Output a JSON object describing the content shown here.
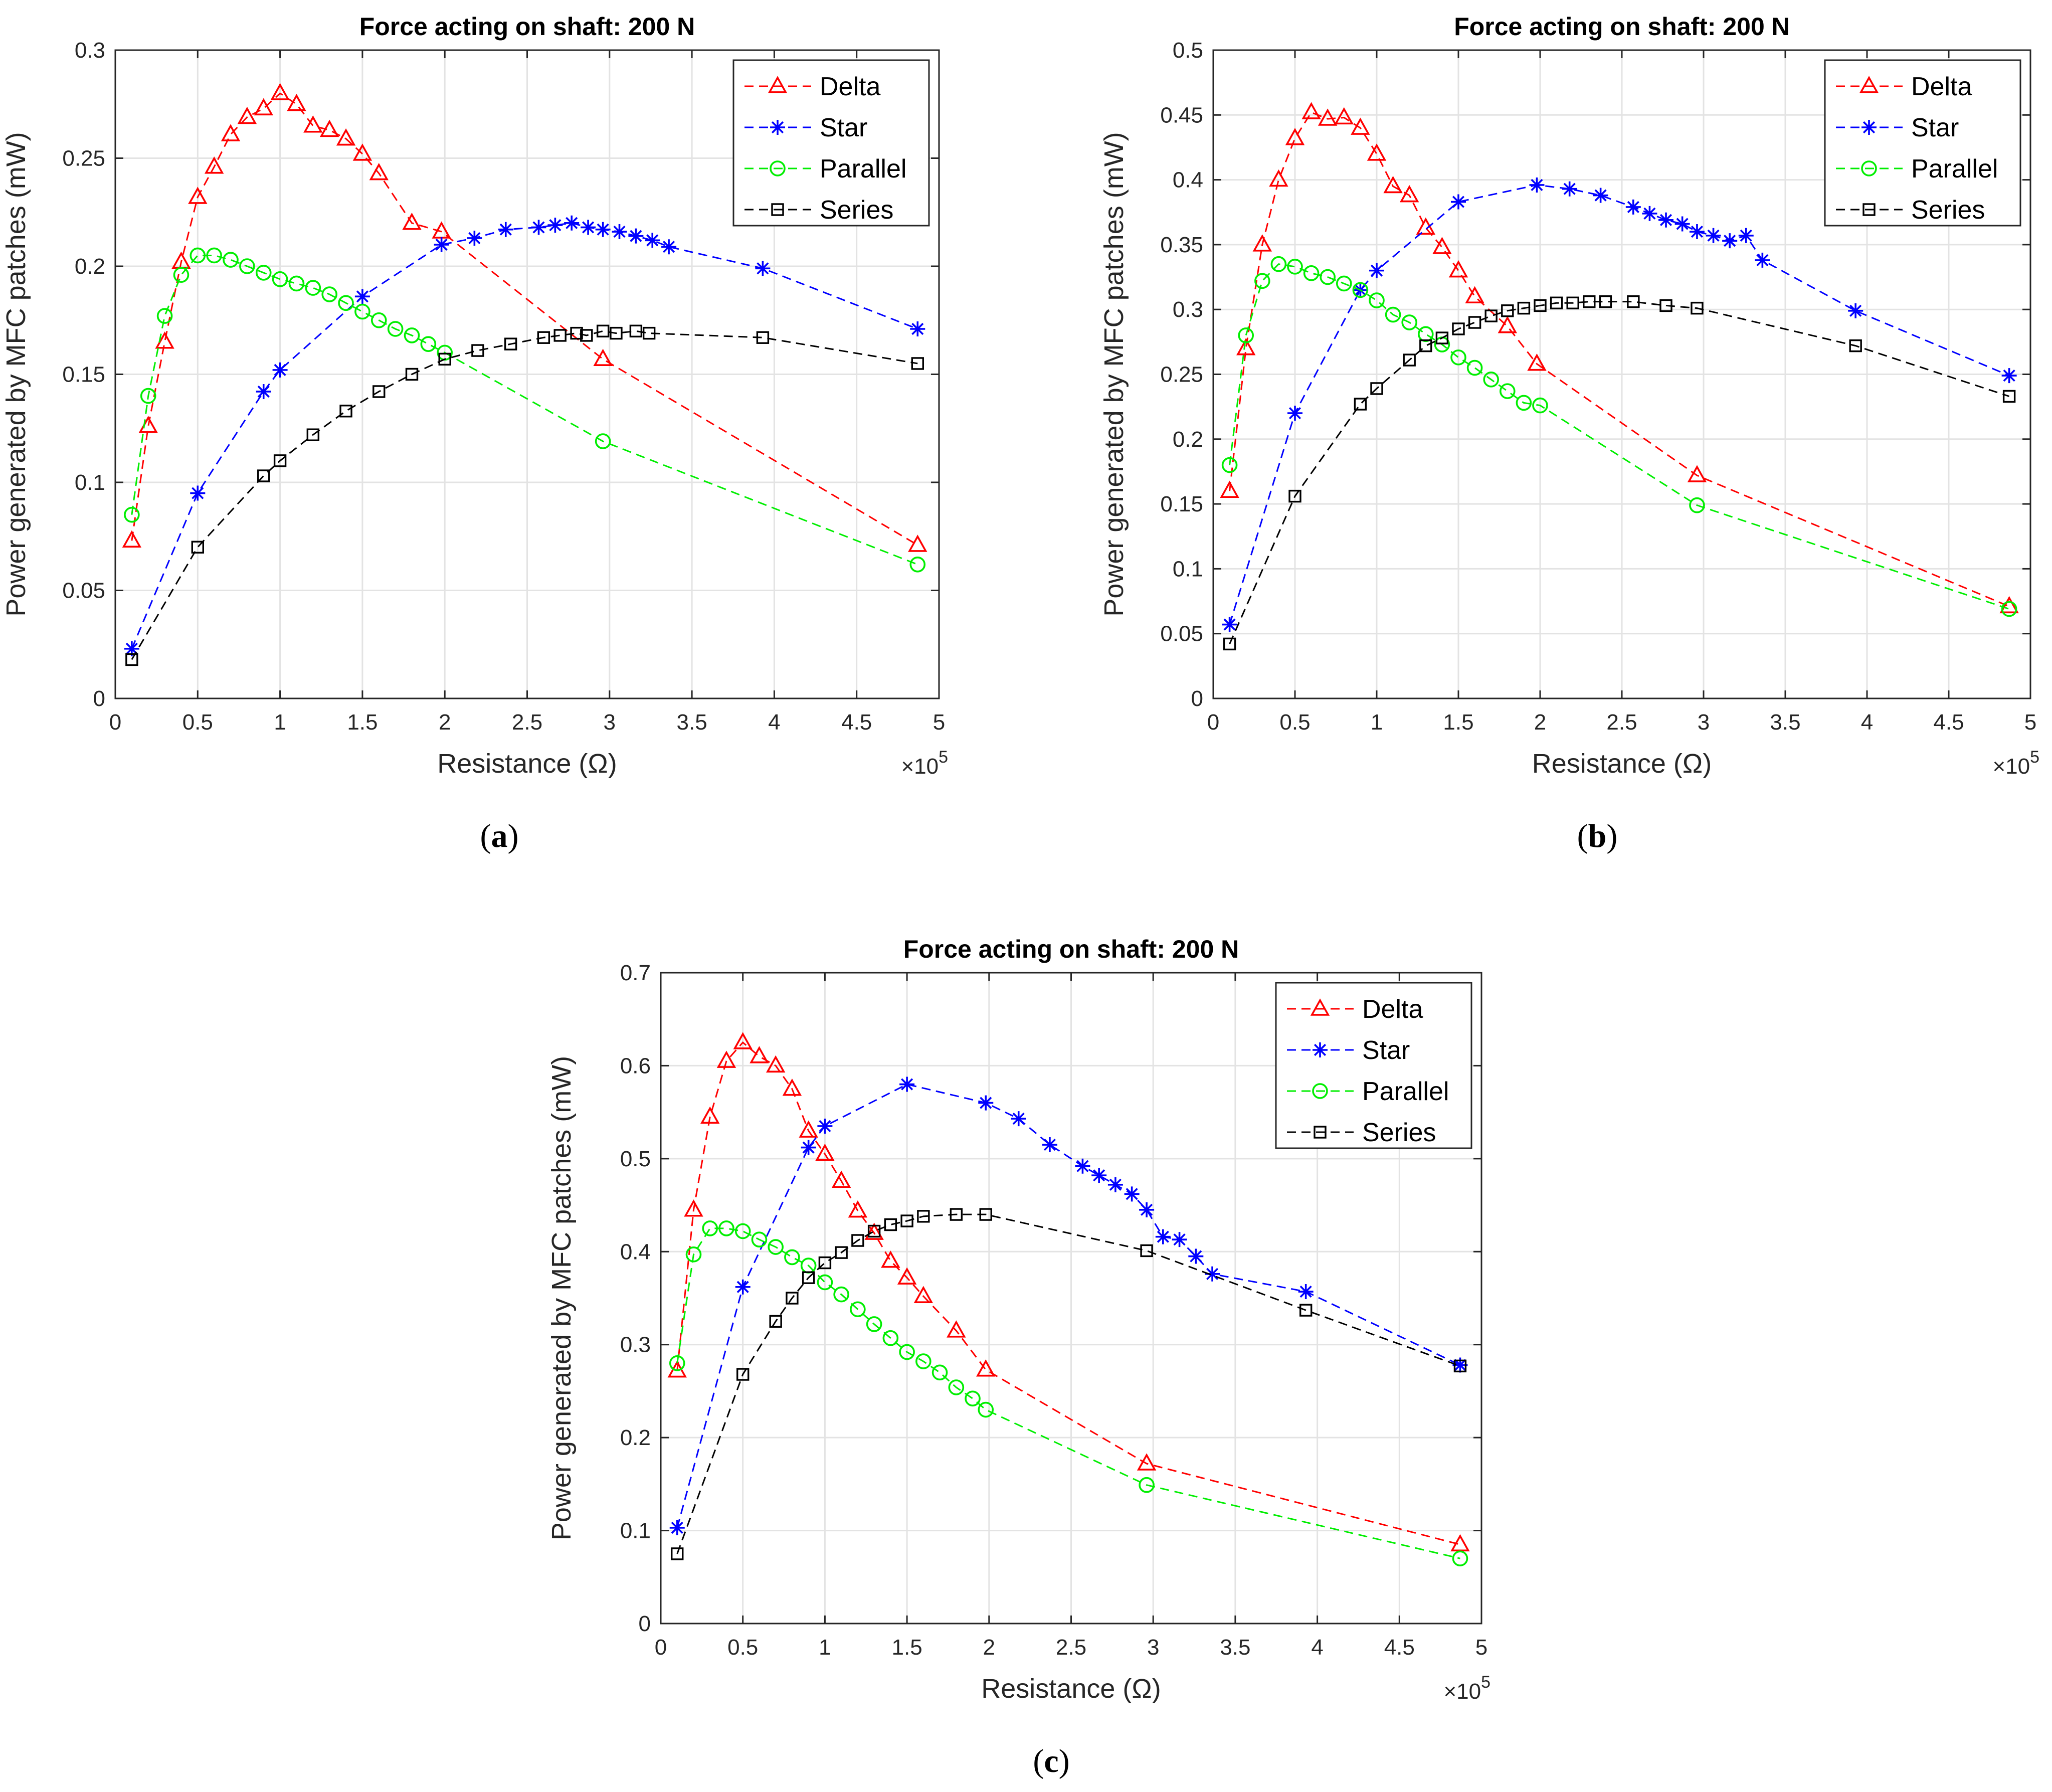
{
  "figure": {
    "captions": [
      "a",
      "b",
      "c"
    ]
  },
  "colors": {
    "delta": "#ff0000",
    "star": "#0000ff",
    "parallel": "#00ee00",
    "series": "#000000",
    "grid": "#e3e3e3",
    "axis": "#262626"
  },
  "chart_data": [
    {
      "type": "line",
      "panel": "a",
      "title": "Force acting on shaft: 200 N",
      "xlabel": "Resistance (Ω)",
      "ylabel": "Power generated by MFC patches (mW)",
      "x_multiplier_label": "×10",
      "x_multiplier_exp": "5",
      "xlim": [
        0,
        5
      ],
      "ylim": [
        0,
        0.3
      ],
      "xticks": [
        0,
        0.5,
        1,
        1.5,
        2,
        2.5,
        3,
        3.5,
        4,
        4.5,
        5
      ],
      "xtick_labels": [
        "0",
        "0.5",
        "1",
        "1.5",
        "2",
        "2.5",
        "3",
        "3.5",
        "4",
        "4.5",
        "5"
      ],
      "yticks": [
        0,
        0.05,
        0.1,
        0.15,
        0.2,
        0.25,
        0.3
      ],
      "ytick_labels": [
        "0",
        "0.05",
        "0.1",
        "0.15",
        "0.2",
        "0.25",
        "0.3"
      ],
      "grid": true,
      "legend_position": "top-right",
      "series": [
        {
          "name": "Delta",
          "marker": "triangle",
          "color_key": "delta",
          "x": [
            0.1,
            0.2,
            0.3,
            0.4,
            0.5,
            0.6,
            0.7,
            0.8,
            0.9,
            1.0,
            1.1,
            1.2,
            1.3,
            1.4,
            1.5,
            1.6,
            1.8,
            1.98,
            2.96,
            4.87
          ],
          "y": [
            0.073,
            0.126,
            0.165,
            0.202,
            0.232,
            0.246,
            0.261,
            0.269,
            0.273,
            0.28,
            0.275,
            0.265,
            0.263,
            0.259,
            0.252,
            0.243,
            0.22,
            0.216,
            0.157,
            0.071
          ]
        },
        {
          "name": "Star",
          "marker": "asterisk",
          "color_key": "star",
          "x": [
            0.1,
            0.5,
            0.9,
            1.0,
            1.5,
            1.98,
            2.18,
            2.37,
            2.57,
            2.67,
            2.77,
            2.87,
            2.96,
            3.06,
            3.16,
            3.26,
            3.36,
            3.93,
            4.87
          ],
          "y": [
            0.023,
            0.095,
            0.142,
            0.152,
            0.186,
            0.21,
            0.213,
            0.217,
            0.218,
            0.219,
            0.22,
            0.218,
            0.217,
            0.216,
            0.214,
            0.212,
            0.209,
            0.199,
            0.171
          ]
        },
        {
          "name": "Parallel",
          "marker": "circle",
          "color_key": "parallel",
          "x": [
            0.1,
            0.2,
            0.3,
            0.4,
            0.5,
            0.6,
            0.7,
            0.8,
            0.9,
            1.0,
            1.1,
            1.2,
            1.3,
            1.4,
            1.5,
            1.6,
            1.7,
            1.8,
            1.9,
            2.0,
            2.96,
            4.87
          ],
          "y": [
            0.085,
            0.14,
            0.177,
            0.196,
            0.205,
            0.205,
            0.203,
            0.2,
            0.197,
            0.194,
            0.192,
            0.19,
            0.187,
            0.183,
            0.179,
            0.175,
            0.171,
            0.168,
            0.164,
            0.16,
            0.119,
            0.062
          ]
        },
        {
          "name": "Series",
          "marker": "square",
          "color_key": "series",
          "x": [
            0.1,
            0.5,
            0.9,
            1.0,
            1.2,
            1.4,
            1.6,
            1.8,
            2.0,
            2.2,
            2.4,
            2.6,
            2.7,
            2.8,
            2.86,
            2.96,
            3.04,
            3.16,
            3.24,
            3.93,
            4.87
          ],
          "y": [
            0.018,
            0.07,
            0.103,
            0.11,
            0.122,
            0.133,
            0.142,
            0.15,
            0.157,
            0.161,
            0.164,
            0.167,
            0.168,
            0.169,
            0.168,
            0.17,
            0.169,
            0.17,
            0.169,
            0.167,
            0.155
          ]
        }
      ]
    },
    {
      "type": "line",
      "panel": "b",
      "title": "Force acting on shaft: 200 N",
      "xlabel": "Resistance (Ω)",
      "ylabel": "Power generated by MFC patches (mW)",
      "x_multiplier_label": "×10",
      "x_multiplier_exp": "5",
      "xlim": [
        0,
        5
      ],
      "ylim": [
        0,
        0.5
      ],
      "xticks": [
        0,
        0.5,
        1,
        1.5,
        2,
        2.5,
        3,
        3.5,
        4,
        4.5,
        5
      ],
      "xtick_labels": [
        "0",
        "0.5",
        "1",
        "1.5",
        "2",
        "2.5",
        "3",
        "3.5",
        "4",
        "4.5",
        "5"
      ],
      "yticks": [
        0,
        0.05,
        0.1,
        0.15,
        0.2,
        0.25,
        0.3,
        0.35,
        0.4,
        0.45,
        0.5
      ],
      "ytick_labels": [
        "0",
        "0.05",
        "0.1",
        "0.15",
        "0.2",
        "0.25",
        "0.3",
        "0.35",
        "0.4",
        "0.45",
        "0.5"
      ],
      "grid": true,
      "legend_position": "top-right",
      "series": [
        {
          "name": "Delta",
          "marker": "triangle",
          "color_key": "delta",
          "x": [
            0.1,
            0.2,
            0.3,
            0.4,
            0.5,
            0.6,
            0.7,
            0.8,
            0.9,
            1.0,
            1.1,
            1.2,
            1.3,
            1.4,
            1.5,
            1.6,
            1.8,
            1.98,
            2.96,
            4.87
          ],
          "y": [
            0.16,
            0.27,
            0.35,
            0.4,
            0.432,
            0.452,
            0.447,
            0.448,
            0.44,
            0.42,
            0.395,
            0.388,
            0.363,
            0.348,
            0.33,
            0.31,
            0.287,
            0.258,
            0.172,
            0.071
          ]
        },
        {
          "name": "Star",
          "marker": "asterisk",
          "color_key": "star",
          "x": [
            0.1,
            0.5,
            0.9,
            1.0,
            1.5,
            1.98,
            2.18,
            2.37,
            2.57,
            2.67,
            2.77,
            2.87,
            2.96,
            3.06,
            3.16,
            3.26,
            3.36,
            3.93,
            4.87
          ],
          "y": [
            0.057,
            0.22,
            0.315,
            0.33,
            0.383,
            0.396,
            0.393,
            0.388,
            0.379,
            0.374,
            0.369,
            0.366,
            0.36,
            0.357,
            0.353,
            0.357,
            0.338,
            0.299,
            0.249
          ]
        },
        {
          "name": "Parallel",
          "marker": "circle",
          "color_key": "parallel",
          "x": [
            0.1,
            0.2,
            0.3,
            0.4,
            0.5,
            0.6,
            0.7,
            0.8,
            0.9,
            1.0,
            1.1,
            1.2,
            1.3,
            1.4,
            1.5,
            1.6,
            1.7,
            1.8,
            1.9,
            2.0,
            2.96,
            4.87
          ],
          "y": [
            0.18,
            0.28,
            0.322,
            0.335,
            0.333,
            0.328,
            0.325,
            0.32,
            0.315,
            0.307,
            0.296,
            0.29,
            0.281,
            0.273,
            0.263,
            0.255,
            0.246,
            0.237,
            0.228,
            0.226,
            0.149,
            0.069
          ]
        },
        {
          "name": "Series",
          "marker": "square",
          "color_key": "series",
          "x": [
            0.1,
            0.5,
            0.9,
            1.0,
            1.2,
            1.3,
            1.4,
            1.5,
            1.6,
            1.7,
            1.8,
            1.9,
            2.0,
            2.1,
            2.2,
            2.3,
            2.4,
            2.57,
            2.77,
            2.96,
            3.93,
            4.87
          ],
          "y": [
            0.042,
            0.156,
            0.227,
            0.239,
            0.261,
            0.272,
            0.278,
            0.285,
            0.29,
            0.295,
            0.299,
            0.301,
            0.303,
            0.305,
            0.305,
            0.306,
            0.306,
            0.306,
            0.303,
            0.301,
            0.272,
            0.233
          ]
        }
      ]
    },
    {
      "type": "line",
      "panel": "c",
      "title": "Force acting on shaft: 200 N",
      "xlabel": "Resistance (Ω)",
      "ylabel": "Power generated by MFC patches (mW)",
      "x_multiplier_label": "×10",
      "x_multiplier_exp": "5",
      "xlim": [
        0,
        5
      ],
      "ylim": [
        0,
        0.7
      ],
      "xticks": [
        0,
        0.5,
        1,
        1.5,
        2,
        2.5,
        3,
        3.5,
        4,
        4.5,
        5
      ],
      "xtick_labels": [
        "0",
        "0.5",
        "1",
        "1.5",
        "2",
        "2.5",
        "3",
        "3.5",
        "4",
        "4.5",
        "5"
      ],
      "yticks": [
        0,
        0.1,
        0.2,
        0.3,
        0.4,
        0.5,
        0.6,
        0.7
      ],
      "ytick_labels": [
        "0",
        "0.1",
        "0.2",
        "0.3",
        "0.4",
        "0.5",
        "0.6",
        "0.7"
      ],
      "grid": true,
      "legend_position": "top-right",
      "series": [
        {
          "name": "Delta",
          "marker": "triangle",
          "color_key": "delta",
          "x": [
            0.1,
            0.2,
            0.3,
            0.4,
            0.5,
            0.6,
            0.7,
            0.8,
            0.9,
            1.0,
            1.1,
            1.2,
            1.3,
            1.4,
            1.5,
            1.6,
            1.8,
            1.98,
            2.96,
            4.87
          ],
          "y": [
            0.272,
            0.445,
            0.545,
            0.605,
            0.625,
            0.61,
            0.6,
            0.575,
            0.53,
            0.505,
            0.476,
            0.444,
            0.42,
            0.39,
            0.372,
            0.352,
            0.315,
            0.273,
            0.172,
            0.085
          ]
        },
        {
          "name": "Star",
          "marker": "asterisk",
          "color_key": "star",
          "x": [
            0.1,
            0.5,
            0.9,
            1.0,
            1.5,
            1.98,
            2.18,
            2.37,
            2.57,
            2.67,
            2.77,
            2.87,
            2.96,
            3.06,
            3.16,
            3.26,
            3.36,
            3.93,
            4.87
          ],
          "y": [
            0.103,
            0.362,
            0.512,
            0.535,
            0.58,
            0.56,
            0.543,
            0.515,
            0.492,
            0.482,
            0.472,
            0.462,
            0.445,
            0.416,
            0.413,
            0.395,
            0.376,
            0.357,
            0.278
          ]
        },
        {
          "name": "Parallel",
          "marker": "circle",
          "color_key": "parallel",
          "x": [
            0.1,
            0.2,
            0.3,
            0.4,
            0.5,
            0.6,
            0.7,
            0.8,
            0.9,
            1.0,
            1.1,
            1.2,
            1.3,
            1.4,
            1.5,
            1.6,
            1.7,
            1.8,
            1.9,
            1.98,
            2.96,
            4.87
          ],
          "y": [
            0.28,
            0.397,
            0.425,
            0.425,
            0.422,
            0.413,
            0.405,
            0.394,
            0.385,
            0.367,
            0.354,
            0.338,
            0.322,
            0.307,
            0.292,
            0.282,
            0.27,
            0.254,
            0.242,
            0.23,
            0.149,
            0.07
          ]
        },
        {
          "name": "Series",
          "marker": "square",
          "color_key": "series",
          "x": [
            0.1,
            0.5,
            0.7,
            0.8,
            0.9,
            1.0,
            1.1,
            1.2,
            1.3,
            1.4,
            1.5,
            1.6,
            1.8,
            1.98,
            2.96,
            3.93,
            4.87
          ],
          "y": [
            0.075,
            0.268,
            0.325,
            0.35,
            0.372,
            0.388,
            0.399,
            0.412,
            0.422,
            0.429,
            0.433,
            0.438,
            0.44,
            0.44,
            0.401,
            0.337,
            0.277
          ]
        }
      ]
    }
  ]
}
